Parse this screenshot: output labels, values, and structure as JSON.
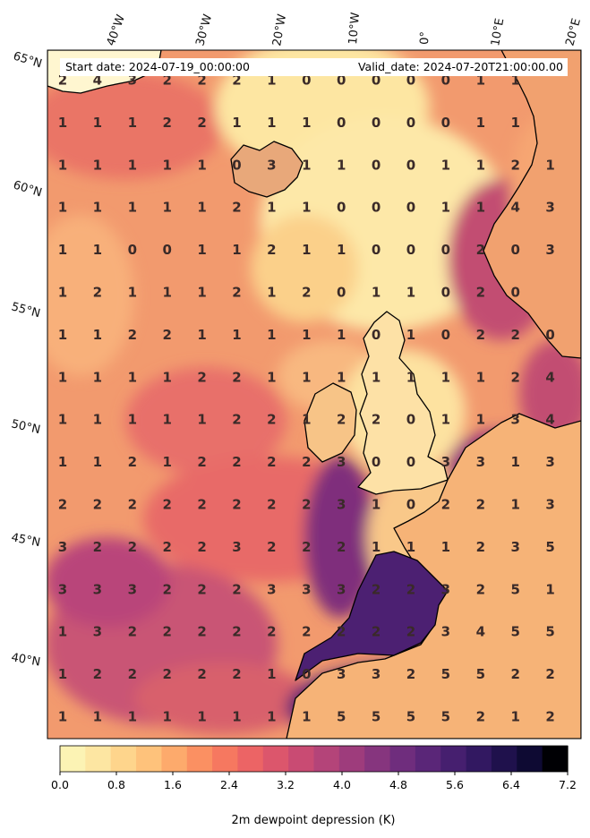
{
  "header": {
    "start_date": "Start date: 2024-07-19_00:00:00",
    "valid_date": "Valid_date: 2024-07-20T21:00:00.00"
  },
  "axes": {
    "lon_labels": [
      "40°W",
      "30°W",
      "20°W",
      "10°W",
      "0°",
      "10°E",
      "20°E"
    ],
    "lat_labels": [
      "65°N",
      "60°N",
      "55°N",
      "50°N",
      "45°N",
      "40°N"
    ]
  },
  "grid_values": [
    [
      "2",
      "4",
      "3",
      "2",
      "2",
      "2",
      "1",
      "0",
      "0",
      "0",
      "0",
      "0",
      "1",
      "1"
    ],
    [
      "1",
      "1",
      "1",
      "2",
      "2",
      "1",
      "1",
      "1",
      "0",
      "0",
      "0",
      "0",
      "1",
      "1"
    ],
    [
      "1",
      "1",
      "1",
      "1",
      "1",
      "0",
      "3",
      "1",
      "1",
      "0",
      "0",
      "1",
      "1",
      "2",
      "1"
    ],
    [
      "1",
      "1",
      "1",
      "1",
      "1",
      "2",
      "1",
      "1",
      "0",
      "0",
      "0",
      "1",
      "1",
      "4",
      "3"
    ],
    [
      "1",
      "1",
      "0",
      "0",
      "1",
      "1",
      "2",
      "1",
      "1",
      "0",
      "0",
      "0",
      "2",
      "0",
      "3"
    ],
    [
      "1",
      "2",
      "1",
      "1",
      "1",
      "2",
      "1",
      "2",
      "0",
      "1",
      "1",
      "0",
      "2",
      "0"
    ],
    [
      "1",
      "1",
      "2",
      "2",
      "1",
      "1",
      "1",
      "1",
      "1",
      "0",
      "1",
      "0",
      "2",
      "2",
      "0"
    ],
    [
      "1",
      "1",
      "1",
      "1",
      "2",
      "2",
      "1",
      "1",
      "1",
      "1",
      "1",
      "1",
      "1",
      "2",
      "4"
    ],
    [
      "1",
      "1",
      "1",
      "1",
      "1",
      "2",
      "2",
      "1",
      "2",
      "2",
      "0",
      "1",
      "1",
      "3",
      "4"
    ],
    [
      "1",
      "1",
      "2",
      "1",
      "2",
      "2",
      "2",
      "2",
      "3",
      "0",
      "0",
      "3",
      "3",
      "1",
      "3"
    ],
    [
      "2",
      "2",
      "2",
      "2",
      "2",
      "2",
      "2",
      "2",
      "3",
      "1",
      "0",
      "2",
      "2",
      "1",
      "3"
    ],
    [
      "3",
      "2",
      "2",
      "2",
      "2",
      "3",
      "2",
      "2",
      "2",
      "1",
      "1",
      "1",
      "2",
      "3",
      "5"
    ],
    [
      "3",
      "3",
      "3",
      "2",
      "2",
      "2",
      "3",
      "3",
      "3",
      "2",
      "2",
      "3",
      "2",
      "5",
      "1"
    ],
    [
      "1",
      "3",
      "2",
      "2",
      "2",
      "2",
      "2",
      "2",
      "2",
      "2",
      "2",
      "3",
      "4",
      "5",
      "5"
    ],
    [
      "1",
      "2",
      "2",
      "2",
      "2",
      "2",
      "1",
      "0",
      "3",
      "3",
      "2",
      "5",
      "5",
      "2",
      "2"
    ],
    [
      "1",
      "1",
      "1",
      "1",
      "1",
      "1",
      "1",
      "1",
      "5",
      "5",
      "5",
      "5",
      "2",
      "1",
      "2"
    ]
  ],
  "colorbar": {
    "label": "2m dewpoint depression (K)",
    "ticks": [
      "0.0",
      "0.8",
      "1.6",
      "2.4",
      "3.2",
      "4.0",
      "4.8",
      "5.6",
      "6.4",
      "7.2"
    ],
    "min": 0.0,
    "max": 7.2,
    "colors": [
      "#fcf3b4",
      "#fde6a2",
      "#fed58c",
      "#fec27b",
      "#fdaa6c",
      "#fb9062",
      "#f67860",
      "#ec6465",
      "#dc566c",
      "#c94b73",
      "#b44479",
      "#9e3c7c",
      "#86357e",
      "#6f2d7d",
      "#5a2678",
      "#461f6f",
      "#321861",
      "#1f114c",
      "#0e0a33",
      "#000004"
    ]
  },
  "style": {
    "land_dry": "#fde2a0",
    "ocean_base": "#f4a06c",
    "moist": "#5a2678",
    "coast": "#000000"
  }
}
